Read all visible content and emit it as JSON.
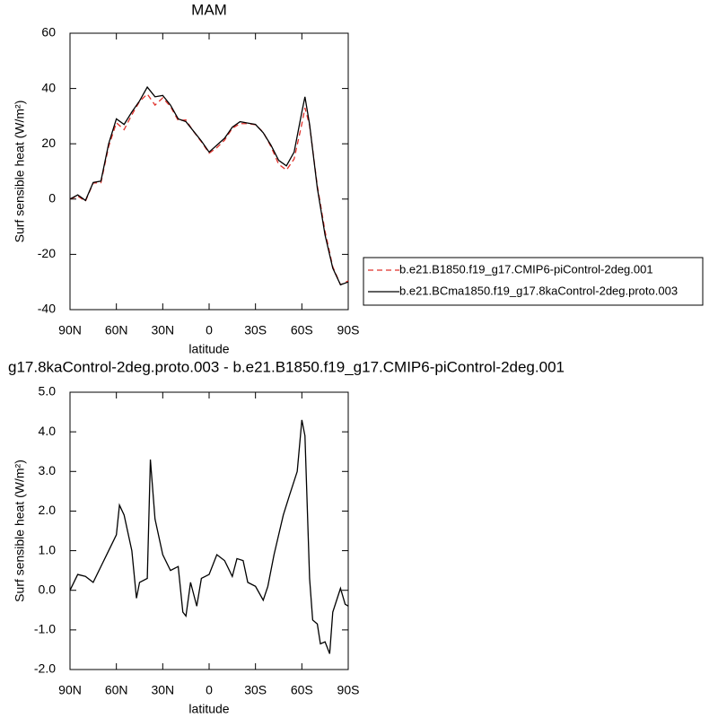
{
  "chart_data": [
    {
      "type": "line",
      "title": "MAM",
      "xlabel": "latitude",
      "ylabel": "Surf sensible heat (W/m²)",
      "x": [
        90,
        85,
        80,
        75,
        70,
        65,
        60,
        55,
        50,
        45,
        40,
        35,
        30,
        25,
        20,
        15,
        10,
        5,
        0,
        -5,
        -10,
        -15,
        -20,
        -25,
        -30,
        -35,
        -40,
        -45,
        -50,
        -55,
        -60,
        -62,
        -65,
        -70,
        -75,
        -80,
        -85,
        -90
      ],
      "series": [
        {
          "name": "b.e21.B1850.f19_g17.CMIP6-piControl-2deg.001",
          "color": "#e0302a",
          "style": "dashed",
          "values": [
            0,
            1.1,
            -0.8,
            5.8,
            5.9,
            19,
            27.6,
            25.1,
            30.5,
            35.3,
            38,
            34,
            36.6,
            33.5,
            28.4,
            28.6,
            24.4,
            20.7,
            16.6,
            18.6,
            21.3,
            25.6,
            27.3,
            27.3,
            26.9,
            24.2,
            19,
            12.6,
            10.5,
            14.5,
            27.2,
            33,
            26.7,
            4.8,
            -11.7,
            -24.5,
            -31,
            -29.6
          ]
        },
        {
          "name": "b.e21.BCma1850.f19_g17.8kaControl-2deg.proto.003",
          "color": "#000000",
          "style": "solid",
          "values": [
            0,
            1.5,
            -0.5,
            6,
            6.5,
            20,
            29,
            27,
            31.5,
            35.5,
            40.5,
            37,
            37.5,
            34,
            29,
            28,
            24.5,
            21,
            17,
            19.5,
            22,
            26,
            28,
            27.5,
            27,
            24,
            19.5,
            14,
            12,
            17,
            31.5,
            37,
            27,
            4,
            -13,
            -25,
            -31,
            -30
          ]
        }
      ],
      "xlim": [
        90,
        -90
      ],
      "xticks": [
        {
          "value": 90,
          "label": "90N"
        },
        {
          "value": 60,
          "label": "60N"
        },
        {
          "value": 30,
          "label": "30N"
        },
        0,
        {
          "value": -30,
          "label": "30S"
        },
        {
          "value": -60,
          "label": "60S"
        },
        {
          "value": -90,
          "label": "90S"
        }
      ],
      "ylim": [
        -40,
        60
      ],
      "yticks": [
        -40,
        -20,
        0,
        20,
        40,
        60
      ],
      "legend": "right"
    },
    {
      "type": "line",
      "title": "g17.8kaControl-2deg.proto.003 - b.e21.B1850.f19_g17.CMIP6-piControl-2deg.001",
      "xlabel": "latitude",
      "ylabel": "Surf sensible heat (W/m²)",
      "x": [
        90,
        85,
        80,
        75,
        70,
        65,
        60,
        58,
        55,
        50,
        47,
        45,
        40,
        38,
        35,
        30,
        25,
        20,
        17,
        15,
        12,
        8,
        5,
        0,
        -5,
        -10,
        -15,
        -18,
        -22,
        -25,
        -30,
        -35,
        -38,
        -42,
        -45,
        -48,
        -52,
        -57,
        -60,
        -62,
        -65,
        -67,
        -70,
        -72,
        -75,
        -78,
        -80,
        -85,
        -88,
        -90
      ],
      "values": [
        0,
        0.4,
        0.35,
        0.2,
        0.6,
        1.0,
        1.4,
        2.15,
        1.9,
        1.0,
        -0.2,
        0.2,
        0.3,
        3.3,
        1.8,
        0.9,
        0.5,
        0.6,
        -0.55,
        -0.65,
        0.2,
        -0.4,
        0.3,
        0.4,
        0.9,
        0.75,
        0.35,
        0.8,
        0.75,
        0.2,
        0.1,
        -0.25,
        0.1,
        0.9,
        1.4,
        1.9,
        2.4,
        3.0,
        4.3,
        3.9,
        0.3,
        -0.75,
        -0.85,
        -1.35,
        -1.3,
        -1.6,
        -0.55,
        0.05,
        -0.35,
        -0.4
      ],
      "color": "#000000",
      "xlim": [
        90,
        -90
      ],
      "xticks": [
        {
          "value": 90,
          "label": "90N"
        },
        {
          "value": 60,
          "label": "60N"
        },
        {
          "value": 30,
          "label": "30N"
        },
        0,
        {
          "value": -30,
          "label": "30S"
        },
        {
          "value": -60,
          "label": "60S"
        },
        {
          "value": -90,
          "label": "90S"
        }
      ],
      "ylim": [
        -2,
        5
      ],
      "yticks": [
        {
          "value": -2,
          "label": "-2.0"
        },
        {
          "value": -1,
          "label": "-1.0"
        },
        {
          "value": 0,
          "label": "0.0"
        },
        {
          "value": 1,
          "label": "1.0"
        },
        {
          "value": 2,
          "label": "2.0"
        },
        {
          "value": 3,
          "label": "3.0"
        },
        {
          "value": 4,
          "label": "4.0"
        },
        {
          "value": 5,
          "label": "5.0"
        }
      ]
    }
  ]
}
